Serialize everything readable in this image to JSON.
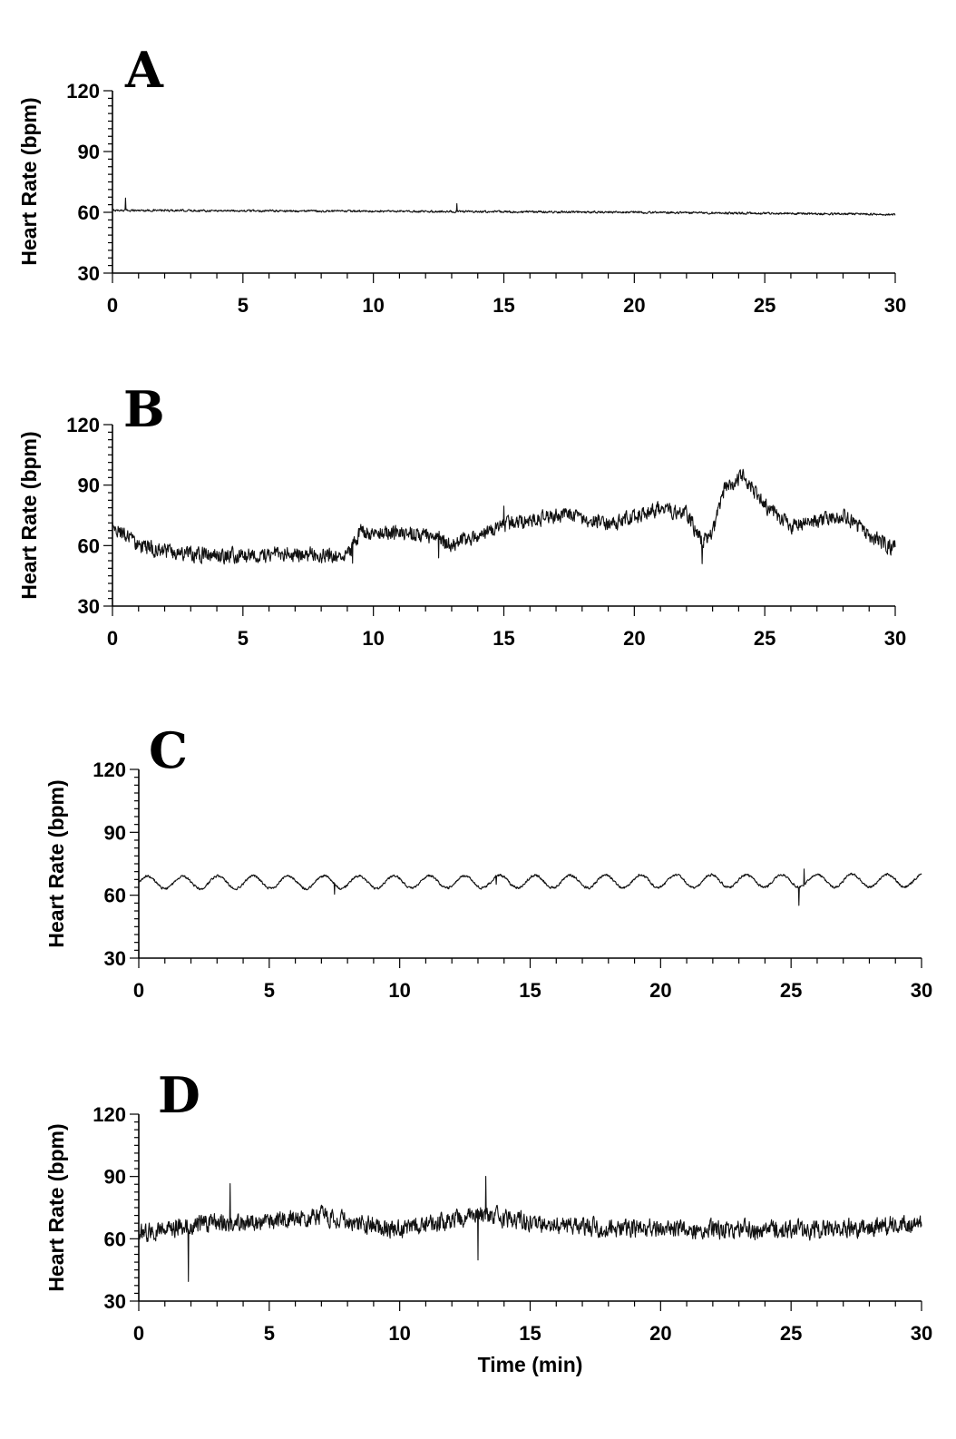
{
  "chart_data": [
    {
      "type": "line",
      "panel_label": "A",
      "title": "",
      "xlabel": "",
      "ylabel": "Heart Rate (bpm)",
      "xlim": [
        0,
        30
      ],
      "ylim": [
        30,
        120
      ],
      "x_ticks": [
        0,
        5,
        10,
        15,
        20,
        25,
        30
      ],
      "y_ticks": [
        30,
        60,
        90,
        120
      ],
      "grid": false,
      "legend": "none",
      "series": [
        {
          "color": "#111111",
          "trend": [
            [
              0,
              61
            ],
            [
              10,
              60.5
            ],
            [
              20,
              60
            ],
            [
              30,
              59
            ]
          ],
          "noise": 0.7,
          "spikes": [
            [
              0.5,
              11
            ],
            [
              0.5,
              -5
            ],
            [
              13.2,
              9
            ],
            [
              13.2,
              -5
            ],
            [
              20.1,
              6
            ],
            [
              20.1,
              -6
            ],
            [
              27.6,
              7
            ],
            [
              27.6,
              -7
            ]
          ]
        }
      ]
    },
    {
      "type": "line",
      "panel_label": "B",
      "title": "",
      "xlabel": "",
      "ylabel": "Heart Rate (bpm)",
      "xlim": [
        0,
        30
      ],
      "ylim": [
        30,
        120
      ],
      "x_ticks": [
        0,
        5,
        10,
        15,
        20,
        25,
        30
      ],
      "y_ticks": [
        30,
        60,
        90,
        120
      ],
      "grid": false,
      "legend": "none",
      "series": [
        {
          "color": "#111111",
          "trend": [
            [
              0,
              70
            ],
            [
              1,
              60
            ],
            [
              2,
              57
            ],
            [
              4,
              55
            ],
            [
              7,
              56
            ],
            [
              9,
              55
            ],
            [
              9.5,
              67
            ],
            [
              12,
              66
            ],
            [
              13,
              60
            ],
            [
              14,
              65
            ],
            [
              15,
              70
            ],
            [
              16,
              73
            ],
            [
              17.5,
              75
            ],
            [
              19,
              71
            ],
            [
              20,
              74
            ],
            [
              21,
              78
            ],
            [
              22,
              76
            ],
            [
              22.6,
              62
            ],
            [
              23,
              66
            ],
            [
              23.5,
              90
            ],
            [
              24.2,
              94
            ],
            [
              25,
              80
            ],
            [
              26,
              70
            ],
            [
              27,
              72
            ],
            [
              28,
              75
            ],
            [
              29,
              65
            ],
            [
              30,
              58
            ]
          ],
          "noise": 5,
          "spikes": [
            [
              9.2,
              -8
            ],
            [
              12.5,
              -12
            ],
            [
              15,
              12
            ],
            [
              22.6,
              -9
            ]
          ]
        }
      ]
    },
    {
      "type": "line",
      "panel_label": "C",
      "title": "",
      "xlabel": "",
      "ylabel": "Heart Rate (bpm)",
      "xlim": [
        0,
        30
      ],
      "ylim": [
        30,
        120
      ],
      "x_ticks": [
        0,
        5,
        10,
        15,
        20,
        25,
        30
      ],
      "y_ticks": [
        30,
        60,
        90,
        120
      ],
      "grid": false,
      "legend": "none",
      "series": [
        {
          "color": "#111111",
          "trend": [
            [
              0,
              66
            ],
            [
              30,
              67
            ]
          ],
          "oscillation": {
            "period": 1.35,
            "amplitude": 3
          },
          "noise": 0.8,
          "spikes": [
            [
              25.3,
              -9
            ],
            [
              25.5,
              8
            ],
            [
              7.5,
              -5
            ],
            [
              13.7,
              -4
            ]
          ]
        }
      ]
    },
    {
      "type": "line",
      "panel_label": "D",
      "title": "",
      "xlabel": "Time (min)",
      "ylabel": "Heart Rate (bpm)",
      "xlim": [
        0,
        30
      ],
      "ylim": [
        30,
        120
      ],
      "x_ticks": [
        0,
        5,
        10,
        15,
        20,
        25,
        30
      ],
      "y_ticks": [
        30,
        60,
        90,
        120
      ],
      "grid": false,
      "legend": "none",
      "series": [
        {
          "color": "#111111",
          "trend": [
            [
              0,
              63
            ],
            [
              3,
              68
            ],
            [
              5,
              68
            ],
            [
              7,
              71
            ],
            [
              10,
              64
            ],
            [
              13,
              72
            ],
            [
              16,
              66
            ],
            [
              20,
              65
            ],
            [
              25,
              64
            ],
            [
              30,
              67
            ]
          ],
          "noise": 6,
          "spikes": [
            [
              1.9,
              -30
            ],
            [
              13,
              -26
            ],
            [
              3.5,
              22
            ],
            [
              13.3,
              19
            ]
          ]
        }
      ]
    }
  ]
}
